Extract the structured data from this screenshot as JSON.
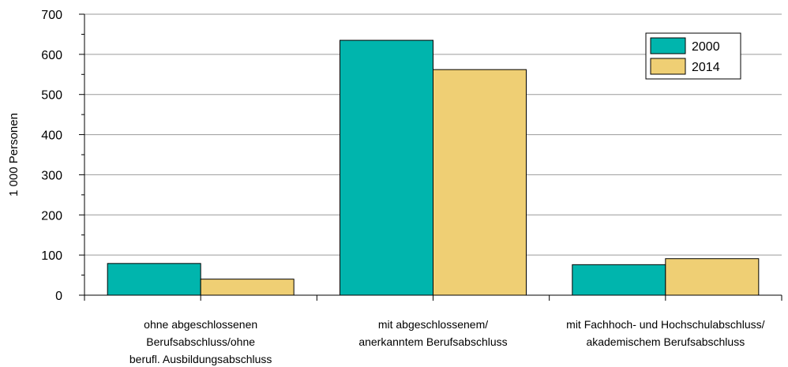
{
  "chart_data": {
    "type": "bar",
    "categories": [
      [
        "ohne abgeschlossenen",
        "Berufsabschluss/ohne",
        "berufl. Ausbildungsabschluss"
      ],
      [
        "mit abgeschlossenem/",
        "anerkanntem Berufsabschluss"
      ],
      [
        "mit Fachhoch- und Hochschulabschluss/",
        "akademischem Berufsabschluss"
      ]
    ],
    "series": [
      {
        "name": "2000",
        "color": "#00B5AD",
        "values": [
          79,
          635,
          76
        ]
      },
      {
        "name": "2014",
        "color": "#EFCF74",
        "values": [
          40,
          562,
          91
        ]
      }
    ],
    "ylabel": "1 000 Personen",
    "ylim": [
      0,
      700
    ],
    "yticks": [
      0,
      100,
      200,
      300,
      400,
      500,
      600,
      700
    ],
    "grid": true,
    "legend_position": "top-right"
  }
}
